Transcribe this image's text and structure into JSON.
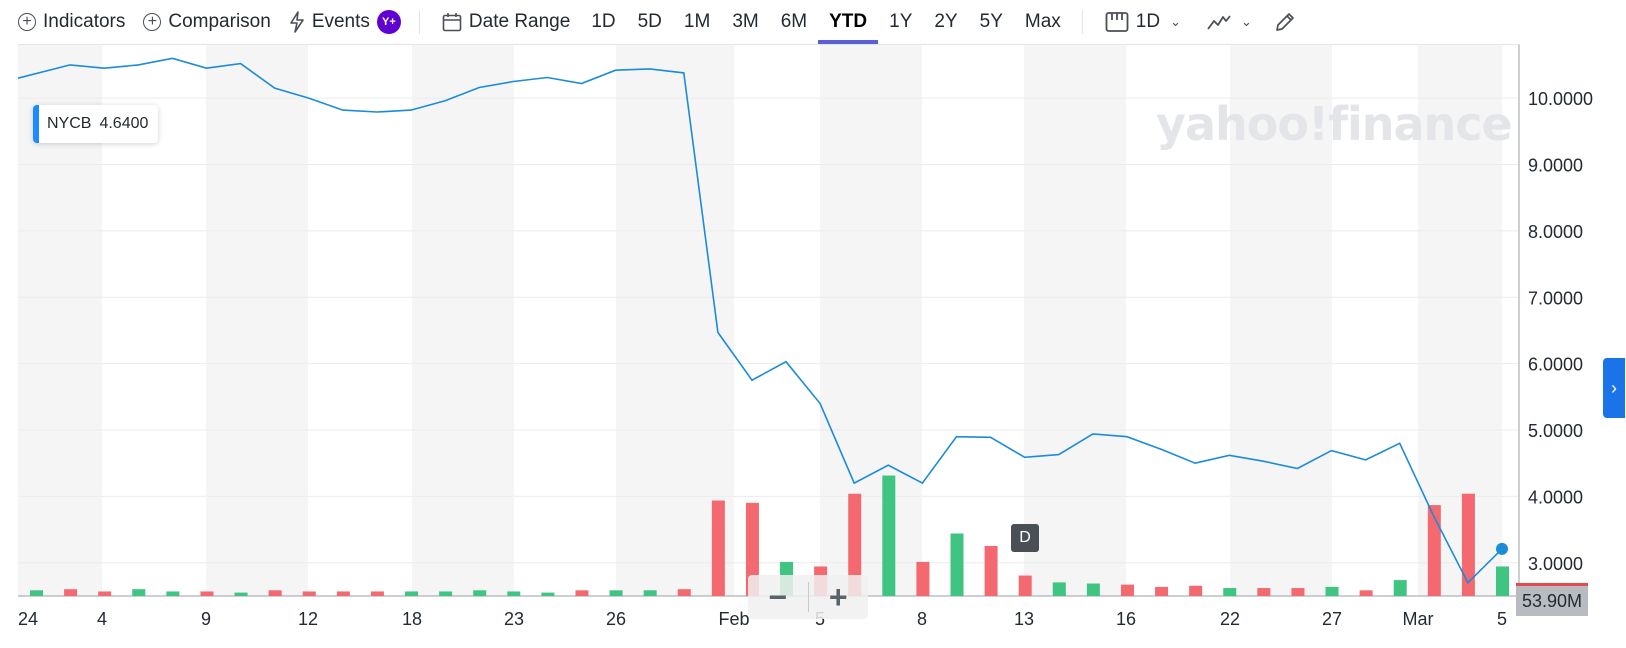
{
  "toolbar": {
    "indicators": "Indicators",
    "comparison": "Comparison",
    "events": "Events",
    "events_badge": "Y+",
    "date_range": "Date Range",
    "ranges": [
      "1D",
      "5D",
      "1M",
      "3M",
      "6M",
      "YTD",
      "1Y",
      "2Y",
      "5Y",
      "Max"
    ],
    "active_range": "YTD",
    "interval": "1D"
  },
  "ticker": {
    "symbol": "NYCB",
    "price": "4.6400"
  },
  "watermark": "yahoo!finance",
  "event_marker": "D",
  "volume_label": "53.90M",
  "zoom": {
    "minus": "−",
    "plus": "+"
  },
  "colors": {
    "line": "#1a8cd8",
    "up": "#3fc482",
    "down": "#f4686f",
    "active_tab": "#5b5fd6"
  },
  "chart_data": {
    "type": "line",
    "title": "",
    "x_ticks": [
      "24",
      "4",
      "9",
      "12",
      "18",
      "23",
      "26",
      "Feb",
      "5",
      "8",
      "13",
      "16",
      "22",
      "27",
      "Mar",
      "5"
    ],
    "y_ticks": [
      "10.0000",
      "9.0000",
      "8.0000",
      "7.0000",
      "6.0000",
      "5.0000",
      "4.0000",
      "3.0000"
    ],
    "ylim": [
      2.5,
      10.8
    ],
    "price_series": [
      10.3,
      10.5,
      10.45,
      10.5,
      10.6,
      10.45,
      10.52,
      10.15,
      10.0,
      9.82,
      9.79,
      9.82,
      9.96,
      10.16,
      10.25,
      10.31,
      10.22,
      10.42,
      10.44,
      10.38,
      6.47,
      5.75,
      6.03,
      5.4,
      4.2,
      4.47,
      4.2,
      4.9,
      4.89,
      4.59,
      4.63,
      4.94,
      4.9,
      4.71,
      4.5,
      4.62,
      4.53,
      4.42,
      4.69,
      4.55,
      4.8,
      3.7,
      2.7,
      3.21
    ],
    "volume_series": [
      {
        "v": 5,
        "up": true
      },
      {
        "v": 6,
        "up": false
      },
      {
        "v": 4,
        "up": false
      },
      {
        "v": 6,
        "up": true
      },
      {
        "v": 4,
        "up": true
      },
      {
        "v": 4,
        "up": false
      },
      {
        "v": 3,
        "up": true
      },
      {
        "v": 5,
        "up": false
      },
      {
        "v": 4,
        "up": false
      },
      {
        "v": 4,
        "up": false
      },
      {
        "v": 4,
        "up": false
      },
      {
        "v": 4,
        "up": true
      },
      {
        "v": 4,
        "up": true
      },
      {
        "v": 5,
        "up": true
      },
      {
        "v": 4,
        "up": true
      },
      {
        "v": 3,
        "up": true
      },
      {
        "v": 5,
        "up": false
      },
      {
        "v": 5,
        "up": true
      },
      {
        "v": 5,
        "up": true
      },
      {
        "v": 6,
        "up": false
      },
      {
        "v": 84,
        "up": false
      },
      {
        "v": 82,
        "up": false
      },
      {
        "v": 30,
        "up": true
      },
      {
        "v": 26,
        "up": false
      },
      {
        "v": 90,
        "up": false
      },
      {
        "v": 106,
        "up": true
      },
      {
        "v": 30,
        "up": false
      },
      {
        "v": 55,
        "up": true
      },
      {
        "v": 44,
        "up": false
      },
      {
        "v": 18,
        "up": false
      },
      {
        "v": 12,
        "up": true
      },
      {
        "v": 11,
        "up": true
      },
      {
        "v": 10,
        "up": false
      },
      {
        "v": 8,
        "up": false
      },
      {
        "v": 9,
        "up": false
      },
      {
        "v": 7,
        "up": true
      },
      {
        "v": 7,
        "up": false
      },
      {
        "v": 7,
        "up": false
      },
      {
        "v": 8,
        "up": true
      },
      {
        "v": 5,
        "up": false
      },
      {
        "v": 14,
        "up": true
      },
      {
        "v": 80,
        "up": false
      },
      {
        "v": 90,
        "up": false
      },
      {
        "v": 26,
        "up": true
      }
    ]
  }
}
